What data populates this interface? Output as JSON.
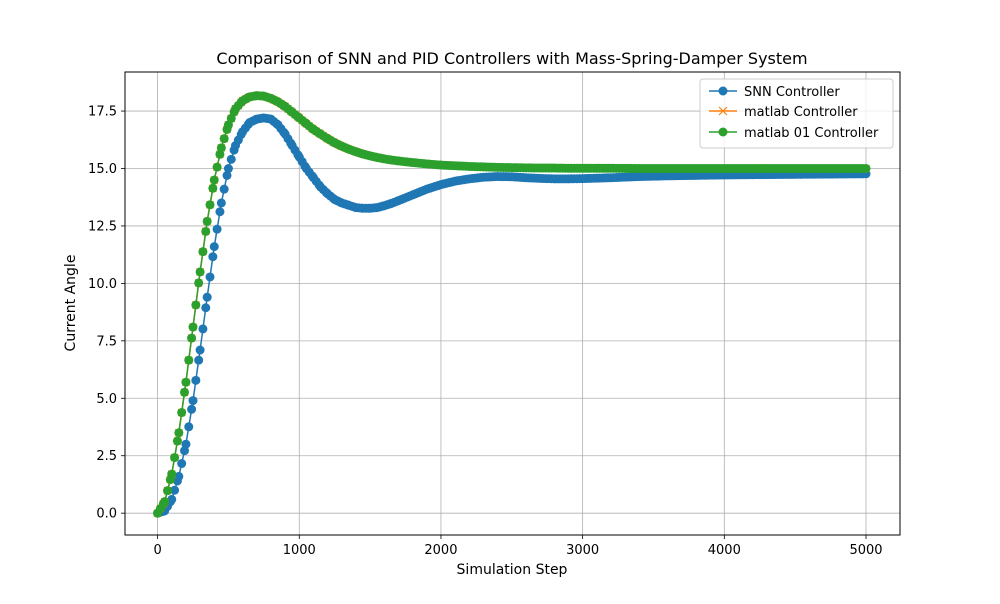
{
  "chart_data": {
    "type": "line",
    "title": "Comparison of SNN and PID Controllers with Mass-Spring-Damper System",
    "xlabel": "Simulation Step",
    "ylabel": "Current Angle",
    "xlim": [
      -230,
      5240
    ],
    "ylim": [
      -0.95,
      19.2
    ],
    "xticks": [
      0,
      1000,
      2000,
      3000,
      4000,
      5000
    ],
    "xtick_labels": [
      "0",
      "1000",
      "2000",
      "3000",
      "4000",
      "5000"
    ],
    "yticks": [
      0.0,
      2.5,
      5.0,
      7.5,
      10.0,
      12.5,
      15.0,
      17.5
    ],
    "ytick_labels": [
      "0.0",
      "2.5",
      "5.0",
      "7.5",
      "10.0",
      "12.5",
      "15.0",
      "17.5"
    ],
    "grid": true,
    "legend_position": "top-right",
    "series": [
      {
        "name": "SNN Controller",
        "color": "#1f77b4",
        "marker": "circle",
        "x": [
          0,
          50,
          100,
          150,
          200,
          250,
          300,
          350,
          400,
          450,
          500,
          550,
          600,
          650,
          700,
          750,
          800,
          850,
          900,
          950,
          1000,
          1050,
          1100,
          1150,
          1200,
          1250,
          1300,
          1350,
          1400,
          1450,
          1500,
          1550,
          1600,
          1650,
          1700,
          1800,
          1900,
          2000,
          2100,
          2200,
          2300,
          2400,
          2500,
          2600,
          2700,
          2800,
          2900,
          3000,
          3200,
          3400,
          3600,
          3800,
          4000,
          4200,
          4400,
          4600,
          4800,
          5000
        ],
        "y": [
          0.0,
          0.1,
          0.6,
          1.6,
          3.0,
          4.9,
          7.1,
          9.4,
          11.6,
          13.5,
          15.0,
          16.0,
          16.6,
          17.0,
          17.15,
          17.2,
          17.15,
          16.9,
          16.5,
          16.0,
          15.5,
          15.0,
          14.6,
          14.2,
          13.9,
          13.65,
          13.5,
          13.4,
          13.3,
          13.27,
          13.27,
          13.3,
          13.38,
          13.48,
          13.6,
          13.85,
          14.1,
          14.3,
          14.45,
          14.55,
          14.62,
          14.65,
          14.64,
          14.6,
          14.57,
          14.55,
          14.55,
          14.56,
          14.6,
          14.65,
          14.68,
          14.7,
          14.72,
          14.73,
          14.74,
          14.75,
          14.76,
          14.77
        ]
      },
      {
        "name": "matlab Controller",
        "color": "#ff7f0e",
        "marker": "x",
        "x": [
          0,
          50,
          100,
          150,
          200,
          250,
          300,
          350,
          400,
          450,
          500,
          550,
          600,
          650,
          700,
          750,
          800,
          850,
          900,
          950,
          1000,
          1050,
          1100,
          1150,
          1200,
          1250,
          1300,
          1350,
          1400,
          1450,
          1500,
          1550,
          1600,
          1650,
          1700,
          1800,
          1900,
          2000,
          2100,
          2200,
          2300,
          2400,
          2500,
          2600,
          2700,
          2800,
          2900,
          3000,
          3200,
          3400,
          3600,
          3800,
          4000,
          4200,
          4400,
          4600,
          4800,
          5000
        ],
        "y": [
          0.0,
          0.5,
          1.7,
          3.5,
          5.7,
          8.1,
          10.5,
          12.7,
          14.5,
          15.9,
          16.9,
          17.6,
          17.95,
          18.12,
          18.17,
          18.15,
          18.05,
          17.9,
          17.7,
          17.45,
          17.2,
          16.95,
          16.7,
          16.5,
          16.3,
          16.12,
          15.97,
          15.84,
          15.73,
          15.63,
          15.55,
          15.48,
          15.42,
          15.37,
          15.33,
          15.26,
          15.2,
          15.15,
          15.12,
          15.09,
          15.07,
          15.05,
          15.04,
          15.03,
          15.02,
          15.02,
          15.01,
          15.01,
          15.01,
          15.0,
          15.0,
          15.0,
          15.0,
          15.0,
          15.0,
          15.0,
          15.0,
          15.0
        ]
      },
      {
        "name": "matlab 01 Controller",
        "color": "#2ca02c",
        "marker": "circle",
        "x": [
          0,
          50,
          100,
          150,
          200,
          250,
          300,
          350,
          400,
          450,
          500,
          550,
          600,
          650,
          700,
          750,
          800,
          850,
          900,
          950,
          1000,
          1050,
          1100,
          1150,
          1200,
          1250,
          1300,
          1350,
          1400,
          1450,
          1500,
          1550,
          1600,
          1650,
          1700,
          1800,
          1900,
          2000,
          2100,
          2200,
          2300,
          2400,
          2500,
          2600,
          2700,
          2800,
          2900,
          3000,
          3200,
          3400,
          3600,
          3800,
          4000,
          4200,
          4400,
          4600,
          4800,
          5000
        ],
        "y": [
          0.0,
          0.5,
          1.7,
          3.5,
          5.7,
          8.1,
          10.5,
          12.7,
          14.5,
          15.9,
          16.9,
          17.6,
          17.95,
          18.12,
          18.17,
          18.15,
          18.05,
          17.9,
          17.7,
          17.45,
          17.2,
          16.95,
          16.7,
          16.5,
          16.3,
          16.12,
          15.97,
          15.84,
          15.73,
          15.63,
          15.55,
          15.48,
          15.42,
          15.37,
          15.33,
          15.26,
          15.2,
          15.15,
          15.12,
          15.09,
          15.07,
          15.05,
          15.04,
          15.03,
          15.02,
          15.02,
          15.01,
          15.01,
          15.01,
          15.0,
          15.0,
          15.0,
          15.0,
          15.0,
          15.0,
          15.0,
          15.0,
          15.0
        ]
      }
    ]
  }
}
